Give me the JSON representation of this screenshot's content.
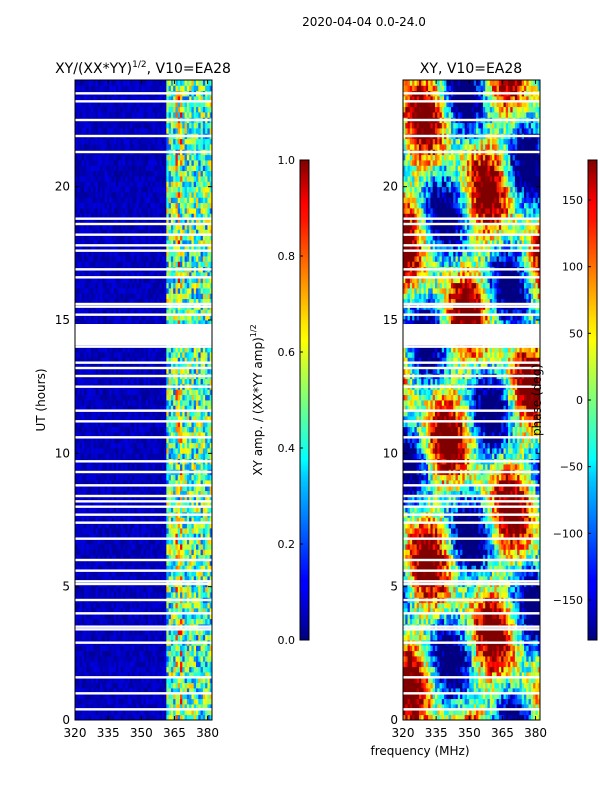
{
  "figure": {
    "suptitle": "2020-04-04 0.0-24.0",
    "shared_xlabel": "frequency (MHz)"
  },
  "chart_data": [
    {
      "type": "heatmap",
      "title": "XY/(XX*YY)^1/2, V10=EA28",
      "title_main": "XY/(XX*YY)",
      "title_exp": "1/2",
      "title_tail": ", V10=EA28",
      "xlabel": "frequency (MHz)",
      "ylabel": "UT (hours)",
      "xlim": [
        320,
        382
      ],
      "ylim": [
        0,
        24
      ],
      "xticks": [
        320,
        335,
        350,
        365,
        380
      ],
      "yticks": [
        0,
        5,
        10,
        15,
        20
      ],
      "colorbar": {
        "label": "XY amp. / (XX*YY amp)^1/2",
        "label_main": "XY amp. / (XX*YY amp)",
        "label_exp": "1/2",
        "range": [
          0.0,
          1.0
        ],
        "ticks": [
          "0.0",
          "0.2",
          "0.4",
          "0.6",
          "0.8",
          "1.0"
        ],
        "colormap": "jet"
      },
      "flagged_hours": [
        0.4,
        1.0,
        1.6,
        2.9,
        3.4,
        3.5,
        4.0,
        4.5,
        5.1,
        5.2,
        5.6,
        6.0,
        6.8,
        7.4,
        7.7,
        8.0,
        8.2,
        8.4,
        8.8,
        9.3,
        9.7,
        10.6,
        11.2,
        11.6,
        12.5,
        12.9,
        13.2,
        13.4,
        14.0,
        14.2,
        14.3,
        14.6,
        14.8,
        15.2,
        15.5,
        15.6,
        16.6,
        16.9,
        17.6,
        17.8,
        18.2,
        18.6,
        18.8,
        21.3,
        21.9,
        22.5,
        23.2,
        23.5
      ]
    },
    {
      "type": "heatmap",
      "title": "XY, V10=EA28",
      "xlabel": "frequency (MHz)",
      "ylabel": "",
      "xlim": [
        320,
        382
      ],
      "ylim": [
        0,
        24
      ],
      "xticks": [
        320,
        335,
        350,
        365,
        380
      ],
      "yticks": [
        0,
        5,
        10,
        15,
        20
      ],
      "colorbar": {
        "label": "phase (deg)",
        "range": [
          -180,
          180
        ],
        "ticks": [
          "−150",
          "−100",
          "−50",
          "0",
          "50",
          "100",
          "150"
        ],
        "tick_values": [
          -150,
          -100,
          -50,
          0,
          50,
          100,
          150
        ],
        "colormap": "jet"
      },
      "flagged_hours": [
        0.4,
        1.0,
        1.6,
        2.9,
        3.4,
        3.5,
        4.0,
        4.5,
        5.1,
        5.2,
        5.6,
        6.0,
        6.8,
        7.4,
        7.7,
        8.0,
        8.2,
        8.4,
        8.8,
        9.3,
        9.7,
        10.6,
        11.2,
        11.6,
        12.5,
        12.9,
        13.2,
        13.4,
        14.0,
        14.2,
        14.3,
        14.6,
        14.8,
        15.2,
        15.5,
        15.6,
        16.6,
        16.9,
        17.6,
        17.8,
        18.2,
        18.6,
        18.8,
        21.3,
        21.9,
        22.5,
        23.2,
        23.5
      ]
    }
  ]
}
